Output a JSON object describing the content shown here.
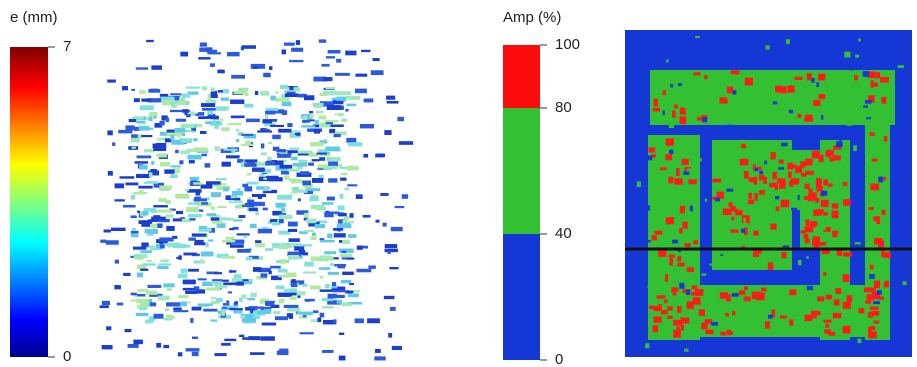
{
  "panels": [
    {
      "colorbar_label": "e (mm)",
      "range": [
        0,
        7
      ],
      "ticks": [
        0,
        7
      ]
    },
    {
      "colorbar_label": "Amp (%)",
      "range": [
        0,
        100
      ],
      "ticks": [
        0,
        40,
        80,
        100
      ],
      "bands": [
        {
          "from": 0,
          "to": 40,
          "color": "#1537d6"
        },
        {
          "from": 40,
          "to": 80,
          "color": "#33c033"
        },
        {
          "from": 80,
          "to": 100,
          "color": "#ff0a0a"
        }
      ]
    }
  ]
}
